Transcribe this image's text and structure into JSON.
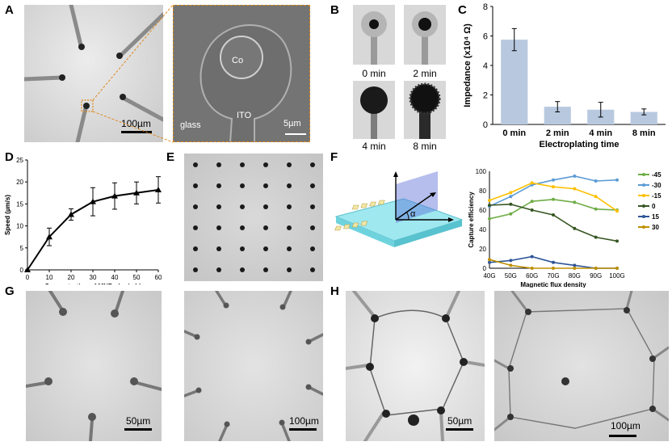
{
  "panels": {
    "A": "A",
    "B": "B",
    "C": "C",
    "D": "D",
    "E": "E",
    "F": "F",
    "G": "G",
    "H": "H"
  },
  "panel_a": {
    "scale_left": "100µm",
    "co": "Co",
    "glass": "glass",
    "ito": "ITO",
    "scale_right": "5µm"
  },
  "panel_b": {
    "labels": [
      "0 min",
      "2 min",
      "4 min",
      "8 min"
    ]
  },
  "panel_f": {
    "alpha": "α"
  },
  "panel_g": {
    "scale_left": "50µm",
    "scale_right": "100µm"
  },
  "panel_h": {
    "scale_left": "50µm",
    "scale_right": "100µm"
  },
  "chart_data": [
    {
      "type": "bar",
      "panel": "C",
      "categories": [
        "0 min",
        "2 min",
        "4 min",
        "8 min"
      ],
      "values": [
        5.75,
        1.2,
        1.0,
        0.85
      ],
      "errors": [
        0.75,
        0.35,
        0.5,
        0.2
      ],
      "xlabel": "Electroplating time",
      "ylabel": "Impedance (x10⁴ Ω)",
      "yticks": [
        "0",
        "2",
        "4",
        "6",
        "8"
      ],
      "ylim": [
        0,
        8
      ],
      "bar_color": "#b8c9df"
    },
    {
      "type": "line",
      "panel": "D",
      "x": [
        0,
        10,
        20,
        30,
        40,
        50,
        60
      ],
      "y": [
        0,
        7.5,
        12.6,
        15.5,
        16.8,
        17.5,
        18.2
      ],
      "errors": [
        0,
        2,
        1.3,
        3.2,
        3,
        2.5,
        3
      ],
      "xlabel": "Concentration of MNPs (µg/mL)",
      "ylabel": "Speed (µm/s)",
      "xticks": [
        "0",
        "10",
        "20",
        "30",
        "40",
        "50",
        "60"
      ],
      "yticks": [
        "0",
        "5",
        "10",
        "15",
        "20",
        "25"
      ],
      "xlim": [
        0,
        60
      ],
      "ylim": [
        0,
        25
      ]
    },
    {
      "type": "line",
      "panel": "F",
      "categories": [
        "40G",
        "50G",
        "60G",
        "70G",
        "80G",
        "90G",
        "100G"
      ],
      "series": [
        {
          "name": "-45",
          "color": "#70ad47",
          "values": [
            51,
            56,
            69,
            71,
            68,
            61,
            60
          ]
        },
        {
          "name": "-30",
          "color": "#5b9bd5",
          "values": [
            64,
            74,
            86,
            91,
            95,
            90,
            91
          ]
        },
        {
          "name": "-15",
          "color": "#ffc000",
          "values": [
            70,
            78,
            88,
            84,
            82,
            74,
            59
          ]
        },
        {
          "name": "0",
          "color": "#375623",
          "values": [
            65,
            66,
            60,
            55,
            41,
            32,
            28
          ]
        },
        {
          "name": "15",
          "color": "#2e5597",
          "values": [
            6,
            8,
            12,
            6,
            3,
            0,
            0
          ]
        },
        {
          "name": "30",
          "color": "#bf9000",
          "values": [
            9,
            3,
            0,
            0,
            0,
            0,
            0
          ]
        }
      ],
      "xlabel": "Magnetic flux density",
      "ylabel": "Capture efficiency",
      "yticks": [
        "0",
        "20",
        "40",
        "60",
        "80",
        "100"
      ],
      "ylim": [
        0,
        100
      ]
    }
  ]
}
